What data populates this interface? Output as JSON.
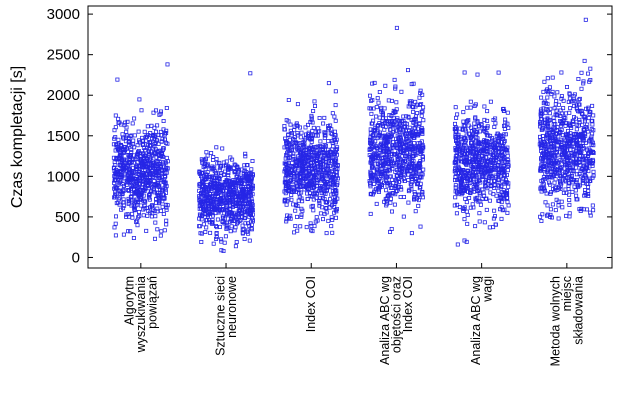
{
  "chart_data": {
    "type": "scatter",
    "title": "",
    "xlabel": "",
    "ylabel": "Czas kompletacji [s]",
    "ylim": [
      -130,
      3100
    ],
    "yticks": [
      0,
      500,
      1000,
      1500,
      2000,
      2500,
      3000
    ],
    "grid": false,
    "legend": "none",
    "marker": "open-square",
    "color": "#2626e6",
    "categories": [
      {
        "name": "cat-1",
        "label_lines": [
          "Algorytm",
          "wyszukiwania",
          "powiązań"
        ],
        "center": 1050,
        "spread": 300,
        "min": 230,
        "max": 2380,
        "n": 700
      },
      {
        "name": "cat-2",
        "label_lines": [
          "Sztuczne sieci",
          "neuronowe"
        ],
        "center": 740,
        "spread": 230,
        "min": 80,
        "max": 2270,
        "n": 700
      },
      {
        "name": "cat-3",
        "label_lines": [
          "Index COI"
        ],
        "center": 1080,
        "spread": 290,
        "min": 300,
        "max": 2150,
        "n": 700
      },
      {
        "name": "cat-4",
        "label_lines": [
          "Analiza ABC wg",
          "objętości oraz",
          "Index COI"
        ],
        "center": 1300,
        "spread": 340,
        "min": 300,
        "max": 2830,
        "n": 700
      },
      {
        "name": "cat-5",
        "label_lines": [
          "Analiza ABC wg",
          "wagi"
        ],
        "center": 1150,
        "spread": 310,
        "min": 160,
        "max": 2280,
        "n": 700
      },
      {
        "name": "cat-6",
        "label_lines": [
          "Metoda wolnych",
          "miejsc",
          "składowania"
        ],
        "center": 1350,
        "spread": 360,
        "min": 450,
        "max": 2930,
        "n": 700
      }
    ]
  }
}
